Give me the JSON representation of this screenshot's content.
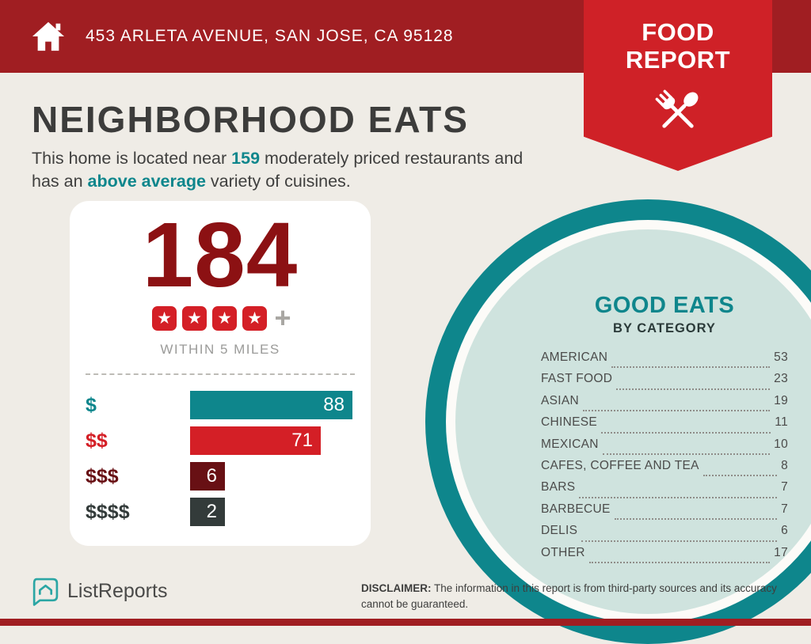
{
  "colors": {
    "header_red": "#a01e22",
    "ribbon_red": "#cf2127",
    "teal": "#0e868c",
    "light_teal": "#cfe3de",
    "maroon": "#8c1113",
    "bar_red": "#d41f26",
    "dark_maroon": "#681014",
    "charcoal": "#333b3a",
    "background": "#efece6"
  },
  "header": {
    "address": "453 ARLETA AVENUE, SAN JOSE, CA 95128",
    "badge_line1": "FOOD",
    "badge_line2": "REPORT"
  },
  "main": {
    "title": "NEIGHBORHOOD EATS",
    "intro_line1_pre": "This home is located near ",
    "intro_count": "159",
    "intro_line1_post": " moderately priced restaurants and",
    "intro_line2_pre": "has an ",
    "intro_highlight": "above average",
    "intro_line2_post": " variety of cuisines."
  },
  "stats_card": {
    "total": "184",
    "star_count": 4,
    "star_glyph": "★",
    "plus": "+",
    "radius_label": "WITHIN 5 MILES"
  },
  "chart_data": [
    {
      "type": "bar",
      "orientation": "horizontal",
      "categories": [
        "$",
        "$$",
        "$$$",
        "$$$$"
      ],
      "values": [
        88,
        71,
        6,
        2
      ],
      "colors": [
        "#0e868c",
        "#d41f26",
        "#681014",
        "#333b3a"
      ],
      "xlim": [
        0,
        88
      ],
      "value_labels": true,
      "context": "184 total restaurants, 4-star average, WITHIN 5 MILES"
    },
    {
      "type": "table",
      "title": "GOOD EATS",
      "subtitle": "BY CATEGORY",
      "categories": [
        "AMERICAN",
        "FAST FOOD",
        "ASIAN",
        "CHINESE",
        "MEXICAN",
        "CAFES, COFFEE AND TEA",
        "BARS",
        "BARBECUE",
        "DELIS",
        "OTHER"
      ],
      "values": [
        53,
        23,
        19,
        11,
        10,
        8,
        7,
        7,
        6,
        17
      ]
    }
  ],
  "good_eats": {
    "title": "GOOD EATS",
    "subtitle": "BY CATEGORY",
    "items": [
      {
        "label": "AMERICAN",
        "value": "53"
      },
      {
        "label": "FAST FOOD",
        "value": "23"
      },
      {
        "label": "ASIAN",
        "value": "19"
      },
      {
        "label": "CHINESE",
        "value": "11"
      },
      {
        "label": "MEXICAN",
        "value": "10"
      },
      {
        "label": "CAFES, COFFEE AND TEA",
        "value": "8"
      },
      {
        "label": "BARS",
        "value": "7"
      },
      {
        "label": "BARBECUE",
        "value": "7"
      },
      {
        "label": "DELIS",
        "value": "6"
      },
      {
        "label": "OTHER",
        "value": "17"
      }
    ]
  },
  "footer": {
    "brand": "ListReports",
    "disclaimer_label": "DISCLAIMER:",
    "disclaimer_text": " The information in this report is from third-party sources and its accuracy cannot be guaranteed."
  }
}
